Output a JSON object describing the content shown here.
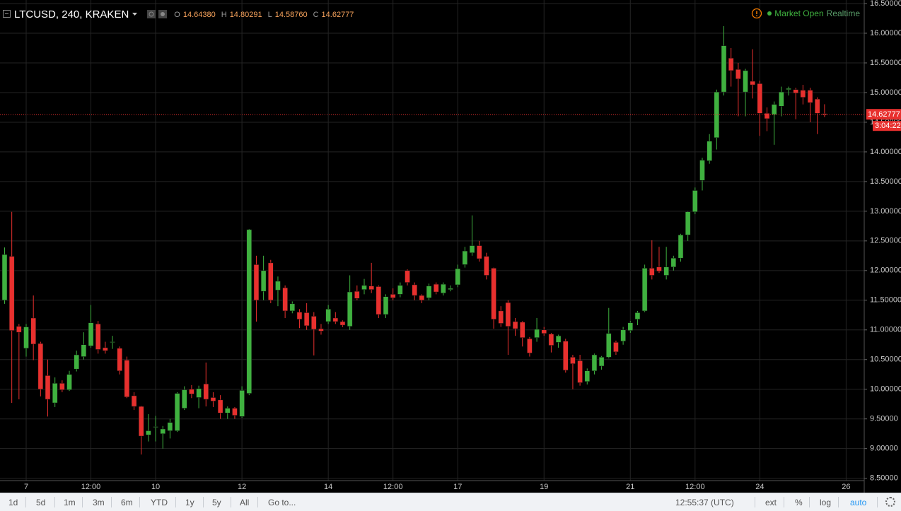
{
  "header": {
    "symbol": "LTCUSD, 240, KRAKEN",
    "ohlc": [
      [
        "O",
        "14.64380"
      ],
      [
        "H",
        "14.80291"
      ],
      [
        "L",
        "14.58760"
      ],
      [
        "C",
        "14.62777"
      ]
    ]
  },
  "status": {
    "market": "Market Open",
    "feed": "Realtime"
  },
  "toolbar": {
    "ranges": [
      "1d",
      "5d",
      "1m",
      "3m",
      "6m",
      "YTD",
      "1y",
      "5y",
      "All"
    ],
    "goto": "Go to...",
    "time": "12:55:37 (UTC)",
    "options": [
      "ext",
      "%",
      "log",
      "auto"
    ]
  },
  "chart_data": {
    "type": "candlestick",
    "up_color": "#3fb13f",
    "down_color": "#e8302e",
    "grid": true,
    "categories": [
      null,
      null,
      null,
      "7",
      null,
      null,
      null,
      null,
      null,
      null,
      null,
      null,
      "12:00",
      null,
      null,
      null,
      null,
      null,
      null,
      null,
      null,
      "10",
      null,
      null,
      null,
      null,
      null,
      null,
      null,
      null,
      null,
      null,
      null,
      "12",
      null,
      null,
      null,
      null,
      null,
      null,
      null,
      null,
      null,
      null,
      null,
      "14",
      null,
      null,
      null,
      null,
      null,
      null,
      null,
      null,
      "12:00",
      null,
      null,
      null,
      null,
      null,
      null,
      null,
      null,
      "17",
      null,
      null,
      null,
      null,
      null,
      null,
      null,
      null,
      null,
      null,
      null,
      "19",
      null,
      null,
      null,
      null,
      null,
      null,
      null,
      null,
      null,
      null,
      null,
      "21",
      null,
      null,
      null,
      null,
      null,
      null,
      null,
      null,
      "12:00",
      null,
      null,
      null,
      null,
      null,
      null,
      null,
      null,
      "24",
      null,
      null,
      null,
      null,
      null,
      null,
      null,
      null,
      null,
      null,
      null,
      "26"
    ],
    "open": [
      11.5,
      12.24,
      11.06,
      10.69,
      11.2,
      10.77,
      10.23,
      9.77,
      10.1,
      9.99,
      10.34,
      10.55,
      10.73,
      11.1,
      10.7,
      10.79,
      10.69,
      10.49,
      9.89,
      9.71,
      9.23,
      9.36,
      9.25,
      9.3,
      9.3,
      9.68,
      10.0,
      9.86,
      10.09,
      9.86,
      9.82,
      9.6,
      9.68,
      9.54,
      9.93,
      12.1,
      11.65,
      12.13,
      11.67,
      11.71,
      11.32,
      11.3,
      11.29,
      11.23,
      11.02,
      11.14,
      11.2,
      11.14,
      11.06,
      11.65,
      11.68,
      11.74,
      11.73,
      11.26,
      11.6,
      11.6,
      12.0,
      11.76,
      11.58,
      11.54,
      11.77,
      11.62,
      11.68,
      11.76,
      12.1,
      12.3,
      12.42,
      12.24,
      12.04,
      11.32,
      11.46,
      11.14,
      11.13,
      10.85,
      10.87,
      11.0,
      10.93,
      10.79,
      10.81,
      10.54,
      10.48,
      10.13,
      10.31,
      10.39,
      10.54,
      10.79,
      10.81,
      10.99,
      11.18,
      11.32,
      12.04,
      12.06,
      11.92,
      12.06,
      12.21,
      12.6,
      12.99,
      13.52,
      13.85,
      14.24,
      15.01,
      15.58,
      15.39,
      15.01,
      15.19,
      15.15,
      14.65,
      14.63,
      14.77,
      15.05,
      15.05,
      15.04,
      15.04,
      14.89,
      14.6438,
      null,
      null,
      null
    ],
    "high": [
      12.39,
      12.99,
      11.1,
      11.1,
      11.58,
      10.8,
      10.5,
      10.2,
      10.15,
      10.31,
      10.65,
      10.96,
      11.42,
      11.15,
      10.8,
      10.9,
      10.72,
      10.55,
      9.95,
      9.72,
      9.58,
      9.55,
      9.38,
      9.5,
      9.95,
      10.05,
      10.07,
      10.06,
      10.45,
      9.95,
      9.9,
      9.71,
      9.7,
      10.05,
      12.7,
      12.25,
      12.25,
      12.18,
      11.9,
      11.75,
      11.48,
      11.35,
      11.45,
      11.3,
      11.1,
      11.42,
      11.3,
      11.16,
      11.92,
      11.75,
      11.86,
      12.13,
      11.75,
      11.6,
      11.7,
      11.8,
      12.02,
      11.8,
      11.6,
      11.78,
      11.8,
      11.8,
      11.75,
      12.1,
      12.4,
      12.93,
      12.5,
      12.3,
      12.05,
      11.4,
      11.5,
      11.2,
      11.15,
      10.88,
      11.2,
      11.05,
      10.95,
      10.92,
      10.85,
      10.58,
      10.58,
      10.35,
      10.6,
      10.56,
      11.37,
      10.82,
      11.05,
      11.15,
      11.32,
      12.1,
      12.51,
      12.4,
      12.4,
      12.25,
      12.62,
      13.0,
      13.4,
      13.9,
      14.3,
      15.05,
      16.12,
      15.75,
      15.5,
      15.4,
      15.73,
      15.2,
      14.75,
      14.85,
      15.1,
      15.1,
      15.08,
      15.13,
      15.08,
      14.92,
      14.80291,
      null,
      null,
      null
    ],
    "low": [
      11.44,
      9.77,
      9.83,
      10.55,
      10.49,
      9.88,
      9.54,
      9.7,
      9.95,
      9.97,
      10.3,
      10.5,
      10.7,
      10.6,
      10.6,
      10.68,
      10.25,
      9.85,
      9.65,
      8.9,
      9.12,
      9.12,
      9.0,
      9.17,
      9.28,
      9.65,
      9.85,
      9.68,
      9.71,
      9.7,
      9.5,
      9.5,
      9.5,
      9.52,
      9.9,
      11.14,
      11.5,
      11.45,
      11.4,
      11.2,
      11.28,
      11.03,
      11.0,
      10.57,
      10.92,
      11.1,
      11.1,
      11.05,
      11.0,
      11.5,
      11.6,
      11.62,
      11.2,
      11.2,
      11.5,
      11.55,
      11.75,
      11.5,
      11.45,
      11.5,
      11.6,
      11.58,
      11.65,
      11.72,
      12.05,
      12.25,
      12.15,
      11.85,
      11.02,
      11.05,
      10.58,
      10.9,
      10.72,
      10.55,
      10.8,
      10.9,
      10.62,
      10.7,
      10.28,
      10.0,
      10.06,
      10.08,
      10.25,
      10.33,
      10.52,
      10.58,
      10.75,
      10.95,
      11.08,
      11.3,
      11.85,
      11.96,
      11.85,
      12.0,
      12.15,
      12.5,
      12.95,
      13.35,
      13.8,
      14.04,
      14.95,
      15.1,
      14.6,
      14.6,
      14.9,
      14.27,
      14.35,
      14.12,
      14.6,
      14.95,
      14.55,
      14.8,
      14.5,
      14.3,
      14.5876,
      null,
      null,
      null
    ],
    "close": [
      12.27,
      10.99,
      10.96,
      11.05,
      10.76,
      10.0,
      9.83,
      10.1,
      9.99,
      10.25,
      10.58,
      10.75,
      11.12,
      10.67,
      10.65,
      10.8,
      10.31,
      9.87,
      9.71,
      9.21,
      9.3,
      9.37,
      9.33,
      9.44,
      9.93,
      9.99,
      9.92,
      10.01,
      9.83,
      9.8,
      9.6,
      9.68,
      9.56,
      9.98,
      12.69,
      11.5,
      12.0,
      11.5,
      11.82,
      11.32,
      11.44,
      11.18,
      11.07,
      11.01,
      10.98,
      11.35,
      11.14,
      11.08,
      11.64,
      11.53,
      11.75,
      11.68,
      11.26,
      11.56,
      11.54,
      11.75,
      11.8,
      11.58,
      11.5,
      11.74,
      11.64,
      11.77,
      11.7,
      12.03,
      12.33,
      12.42,
      12.2,
      11.92,
      11.18,
      11.11,
      11.06,
      11.02,
      10.87,
      10.61,
      11.01,
      10.94,
      10.74,
      10.9,
      10.32,
      10.43,
      10.11,
      10.31,
      10.58,
      10.54,
      10.94,
      10.63,
      11.0,
      11.12,
      11.29,
      12.04,
      11.92,
      11.99,
      12.06,
      12.21,
      12.6,
      12.99,
      13.35,
      13.86,
      14.18,
      15.01,
      15.79,
      15.37,
      15.23,
      15.37,
      15.13,
      14.65,
      14.56,
      14.8,
      15.01,
      15.07,
      14.99,
      14.92,
      14.83,
      14.65,
      14.62777,
      null,
      null,
      null
    ],
    "ylim": [
      8.46,
      16.56
    ],
    "yticks": [
      {
        "value": 8.5,
        "label": "8.50000"
      },
      {
        "value": 9,
        "label": "9.00000"
      },
      {
        "value": 9.5,
        "label": "9.50000"
      },
      {
        "value": 10,
        "label": "10.00000"
      },
      {
        "value": 10.5,
        "label": "10.50000"
      },
      {
        "value": 11,
        "label": "11.00000"
      },
      {
        "value": 11.5,
        "label": "11.50000"
      },
      {
        "value": 12,
        "label": "12.00000"
      },
      {
        "value": 12.5,
        "label": "12.50000"
      },
      {
        "value": 13,
        "label": "13.00000"
      },
      {
        "value": 13.5,
        "label": "13.50000"
      },
      {
        "value": 14,
        "label": "14.00000"
      },
      {
        "value": 14.5,
        "label": "14.50000"
      },
      {
        "value": 15,
        "label": "15.00000"
      },
      {
        "value": 15.5,
        "label": "15.50000"
      },
      {
        "value": 16,
        "label": "16.00000"
      },
      {
        "value": 16.5,
        "label": "16.50000"
      }
    ],
    "last_price": 14.62777,
    "countdown": "3:04:22"
  }
}
